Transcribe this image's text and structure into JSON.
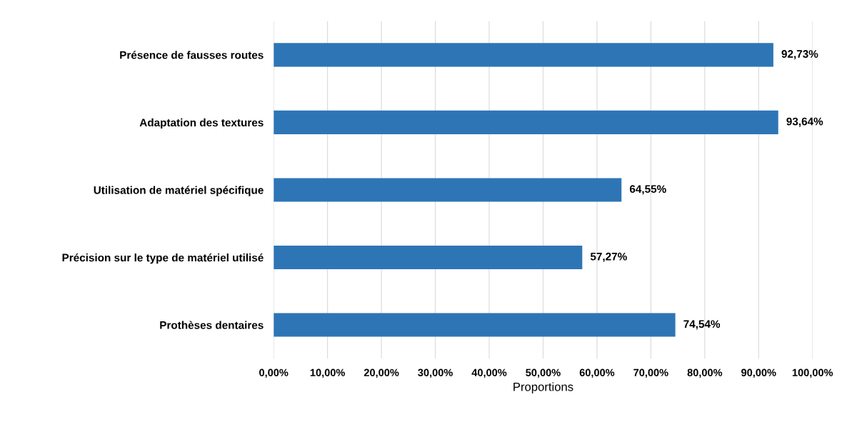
{
  "chart_data": {
    "type": "bar",
    "orientation": "horizontal",
    "xlabel": "Proportions",
    "categories": [
      "Présence de fausses routes",
      "Adaptation des textures",
      "Utilisation de matériel spécifique",
      "Précision sur le type de matériel utilisé",
      "Prothèses dentaires"
    ],
    "values": [
      92.73,
      93.64,
      64.55,
      57.27,
      74.54
    ],
    "value_labels": [
      "92,73%",
      "93,64%",
      "64,55%",
      "57,27%",
      "74,54%"
    ],
    "color": "#2e75b6",
    "xlim": [
      0,
      100
    ],
    "xticks": [
      {
        "value": 0,
        "label": "0,00%"
      },
      {
        "value": 10,
        "label": "10,00%"
      },
      {
        "value": 20,
        "label": "20,00%"
      },
      {
        "value": 30,
        "label": "30,00%"
      },
      {
        "value": 40,
        "label": "40,00%"
      },
      {
        "value": 50,
        "label": "50,00%"
      },
      {
        "value": 60,
        "label": "60,00%"
      },
      {
        "value": 70,
        "label": "70,00%"
      },
      {
        "value": 80,
        "label": "80,00%"
      },
      {
        "value": 90,
        "label": "90,00%"
      },
      {
        "value": 100,
        "label": "100,00%"
      }
    ],
    "grid": "x",
    "legend": false
  }
}
